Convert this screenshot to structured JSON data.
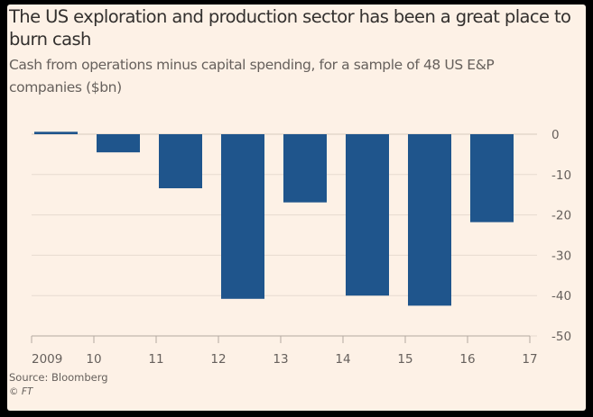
{
  "title": "The US exploration and production sector has been a great place to burn cash",
  "subtitle": "Cash from operations minus capital spending, for a sample of 48 US E&P companies ($bn)",
  "source": "Source: Bloomberg",
  "credit": "© FT",
  "colors": {
    "background": "#fdf1e6",
    "bar": "#1f558c",
    "grid": "#e7dbd0"
  },
  "chart_data": {
    "type": "bar",
    "categories": [
      "2009",
      "10",
      "11",
      "12",
      "13",
      "14",
      "15",
      "16"
    ],
    "x_tick_labels": [
      "2009",
      "10",
      "11",
      "12",
      "13",
      "14",
      "15",
      "16",
      "17"
    ],
    "values": [
      0.6,
      -4.5,
      -13.4,
      -40.8,
      -16.9,
      -40.0,
      -42.5,
      -21.8
    ],
    "y_ticks": [
      0,
      -10,
      -20,
      -30,
      -40,
      -50
    ],
    "y_tick_labels": [
      "0",
      "-10",
      "-20",
      "-30",
      "-40",
      "-50"
    ],
    "ylim": [
      -50,
      0
    ],
    "y_axis_side": "right",
    "grid": true,
    "legend": "none"
  }
}
